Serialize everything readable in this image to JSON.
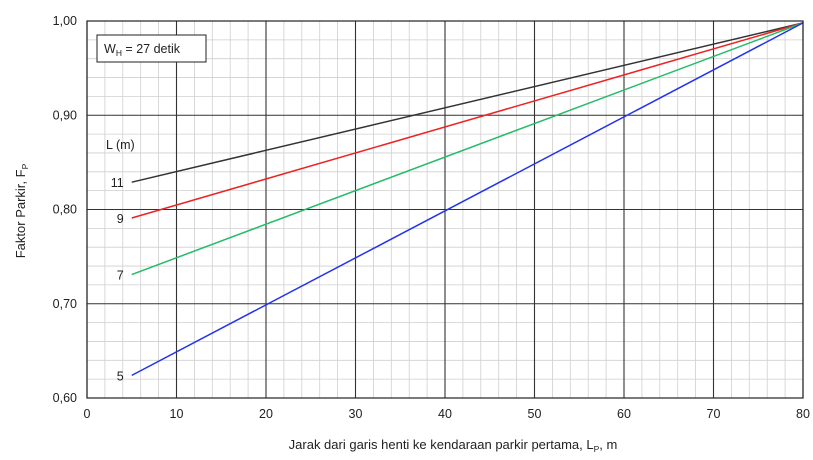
{
  "chart_data": {
    "type": "line",
    "xlabel": "Jarak dari garis henti ke kendaraan parkir pertama, L",
    "xlabel_sub": "P",
    "xlabel_unit": ", m",
    "ylabel": "Faktor Parkir, F",
    "ylabel_sub": "P",
    "xlim": [
      0,
      80
    ],
    "ylim": [
      0.6,
      1.0
    ],
    "x_ticks": [
      0,
      10,
      20,
      30,
      40,
      50,
      60,
      70,
      80
    ],
    "x_tick_labels": [
      "0",
      "10",
      "20",
      "30",
      "40",
      "50",
      "60",
      "70",
      "80"
    ],
    "y_ticks": [
      0.6,
      0.7,
      0.8,
      0.9,
      1.0
    ],
    "y_tick_labels": [
      "0,60",
      "0,70",
      "0,80",
      "0,90",
      "1,00"
    ],
    "grid": "major and minor",
    "annotation": {
      "main": "W",
      "sub": "H",
      "rest": " = 27 detik"
    },
    "series_title": "L (m)",
    "series": [
      {
        "name": "11",
        "color": "#333333",
        "x": [
          5,
          80
        ],
        "y": [
          0.829,
          0.998
        ]
      },
      {
        "name": "9",
        "color": "#ee2222",
        "x": [
          5,
          80
        ],
        "y": [
          0.791,
          0.998
        ]
      },
      {
        "name": "7",
        "color": "#22bb66",
        "x": [
          5,
          80
        ],
        "y": [
          0.731,
          0.998
        ]
      },
      {
        "name": "5",
        "color": "#2233ee",
        "x": [
          5,
          80
        ],
        "y": [
          0.624,
          0.998
        ]
      }
    ]
  }
}
